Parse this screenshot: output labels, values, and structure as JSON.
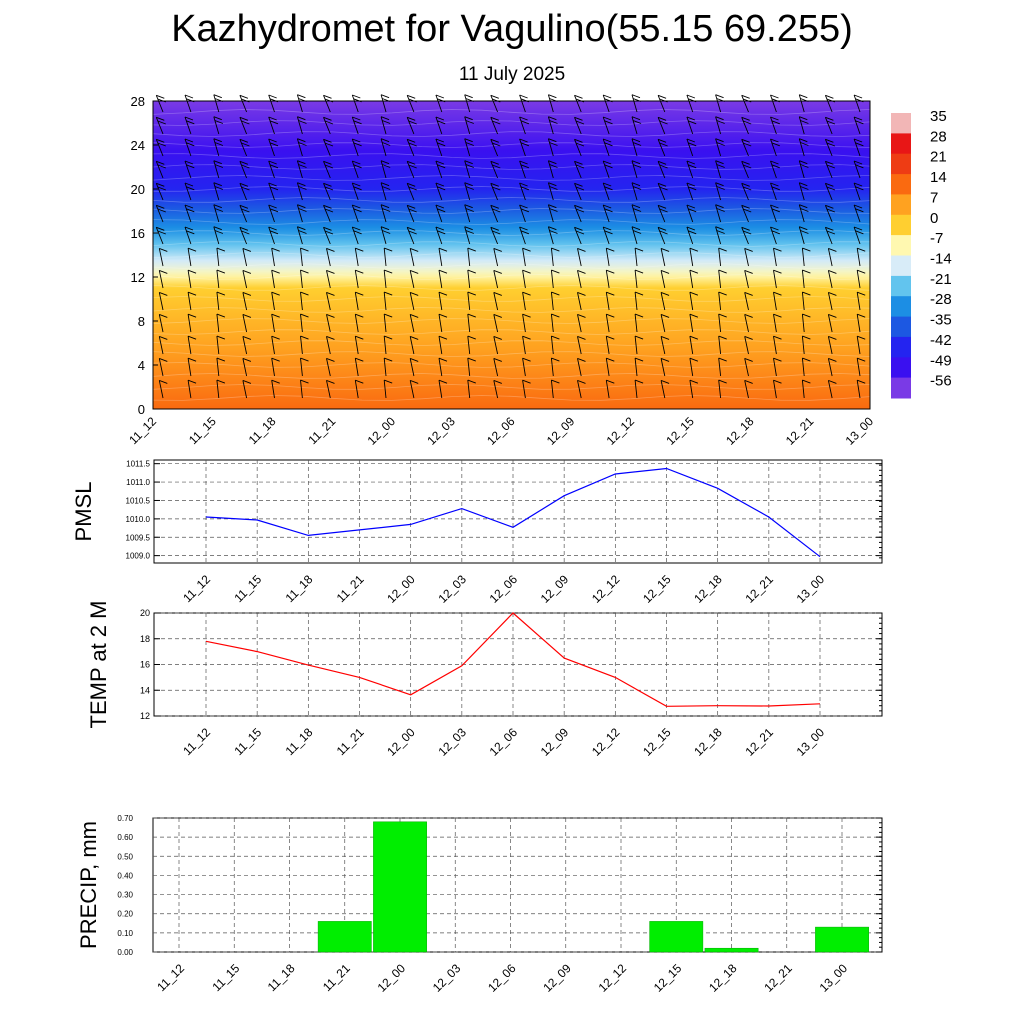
{
  "title": "Kazhydromet for Vagulino(55.15 69.255)",
  "subtitle": "11 July 2025",
  "chart_data": [
    {
      "type": "heatmap",
      "xlabels": [
        "11_12",
        "11_15",
        "11_18",
        "11_21",
        "12_00",
        "12_03",
        "12_06",
        "12_09",
        "12_12",
        "12_15",
        "12_18",
        "12_21",
        "13_00"
      ],
      "ylabel": "",
      "ylim": [
        0,
        28
      ],
      "yticks": [
        0,
        4,
        8,
        12,
        16,
        20,
        24,
        28
      ],
      "colorbar": {
        "labels": [
          35,
          28,
          21,
          14,
          7,
          0,
          -7,
          -14,
          -21,
          -28,
          -35,
          -42,
          -49,
          -56
        ],
        "colors": [
          "#f2b6b6",
          "#e81616",
          "#ee3c14",
          "#fa6a10",
          "#ffa220",
          "#ffcf30",
          "#fff8b0",
          "#d8ecf8",
          "#62c4ee",
          "#1c8ee4",
          "#1c58e2",
          "#2424f0",
          "#3a10f0",
          "#7a3ae6"
        ]
      },
      "vertical_temperature_profile": [
        {
          "level": 0,
          "temp": 14
        },
        {
          "level": 4,
          "temp": 9
        },
        {
          "level": 8,
          "temp": 4
        },
        {
          "level": 11,
          "temp": 0
        },
        {
          "level": 13,
          "temp": -12
        },
        {
          "level": 16,
          "temp": -26
        },
        {
          "level": 20,
          "temp": -42
        },
        {
          "level": 24,
          "temp": -50
        },
        {
          "level": 28,
          "temp": -56
        }
      ],
      "wind_barbs": true
    },
    {
      "type": "line",
      "ylabel": "PMSL",
      "xlabels": [
        "11_12",
        "11_15",
        "11_18",
        "11_21",
        "12_00",
        "12_03",
        "12_06",
        "12_09",
        "12_12",
        "12_15",
        "12_18",
        "12_21",
        "13_00"
      ],
      "ylim": [
        1008.8,
        1011.6
      ],
      "yticks": [
        "1009.0",
        "1009.5",
        "1010.0",
        "1010.5",
        "1011.0",
        "1011.5"
      ],
      "grid": true,
      "series": [
        {
          "color": "#0000ff",
          "values": [
            1010.05,
            1009.97,
            1009.55,
            1009.7,
            1009.85,
            1010.28,
            1009.77,
            1010.63,
            1011.22,
            1011.37,
            1010.83,
            1010.05,
            1008.97
          ]
        }
      ]
    },
    {
      "type": "line",
      "ylabel": "TEMP at 2 M",
      "xlabels": [
        "11_12",
        "11_15",
        "11_18",
        "11_21",
        "12_00",
        "12_03",
        "12_06",
        "12_09",
        "12_12",
        "12_15",
        "12_18",
        "12_21",
        "13_00"
      ],
      "ylim": [
        12,
        20
      ],
      "yticks": [
        "12",
        "14",
        "16",
        "18",
        "20"
      ],
      "grid": true,
      "series": [
        {
          "color": "#ff0000",
          "values": [
            17.8,
            17.0,
            15.95,
            15.0,
            13.65,
            15.9,
            20.0,
            16.5,
            15.0,
            12.75,
            12.8,
            12.78,
            12.95
          ]
        }
      ]
    },
    {
      "type": "bar",
      "ylabel": "PRECIP, mm",
      "categories": [
        "11_12",
        "11_15",
        "11_18",
        "11_21",
        "12_00",
        "12_03",
        "12_06",
        "12_09",
        "12_12",
        "12_15",
        "12_18",
        "12_21",
        "13_00"
      ],
      "values": [
        0,
        0,
        0,
        0.16,
        0.68,
        0,
        0,
        0,
        0,
        0.16,
        0.02,
        0,
        0.13
      ],
      "ylim": [
        0,
        0.7
      ],
      "yticks": [
        "0.00",
        "0.10",
        "0.20",
        "0.30",
        "0.40",
        "0.50",
        "0.60",
        "0.70"
      ],
      "bar_color": "#00ee00",
      "grid": true
    }
  ]
}
